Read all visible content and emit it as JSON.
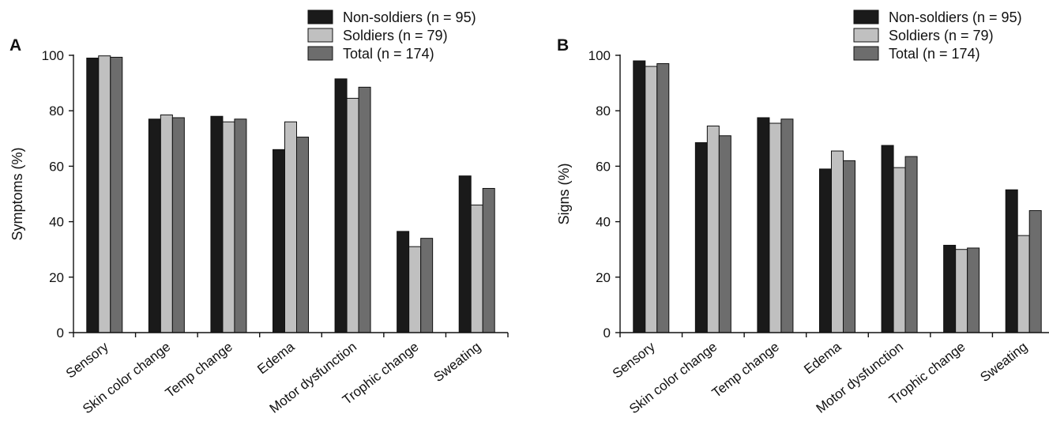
{
  "chart_data": [
    {
      "panel": "A",
      "type": "bar",
      "ylabel": "Symptoms (%)",
      "ylim": [
        0,
        100
      ],
      "yticks": [
        "0",
        "20",
        "40",
        "60",
        "80",
        "100"
      ],
      "categories": [
        "Sensory",
        "Skin color change",
        "Temp change",
        "Edema",
        "Motor dysfunction",
        "Trophic change",
        "Sweating"
      ],
      "series": [
        {
          "name": "Non-soldiers (n = 95)",
          "color": "#1a1a1a",
          "values": [
            99,
            77,
            78,
            66,
            91.5,
            36.5,
            56.5
          ]
        },
        {
          "name": "Soldiers (n = 79)",
          "color": "#c0c0c0",
          "values": [
            99.8,
            78.5,
            76,
            76,
            84.5,
            31,
            46
          ]
        },
        {
          "name": "Total (n = 174)",
          "color": "#6d6d6d",
          "values": [
            99.3,
            77.5,
            77,
            70.5,
            88.5,
            34,
            52
          ]
        }
      ],
      "legend_position": "top-right"
    },
    {
      "panel": "B",
      "type": "bar",
      "ylabel": "Signs (%)",
      "ylim": [
        0,
        100
      ],
      "yticks": [
        "0",
        "20",
        "40",
        "60",
        "80",
        "100"
      ],
      "categories": [
        "Sensory",
        "Skin color change",
        "Temp change",
        "Edema",
        "Motor dysfunction",
        "Trophic change",
        "Sweating"
      ],
      "series": [
        {
          "name": "Non-soldiers (n = 95)",
          "color": "#1a1a1a",
          "values": [
            98,
            68.5,
            77.5,
            59,
            67.5,
            31.5,
            51.5
          ]
        },
        {
          "name": "Soldiers (n = 79)",
          "color": "#c0c0c0",
          "values": [
            96,
            74.5,
            75.5,
            65.5,
            59.5,
            30,
            35
          ]
        },
        {
          "name": "Total (n = 174)",
          "color": "#6d6d6d",
          "values": [
            97,
            71,
            77,
            62,
            63.5,
            30.5,
            44
          ]
        }
      ],
      "legend_position": "top-right"
    }
  ]
}
